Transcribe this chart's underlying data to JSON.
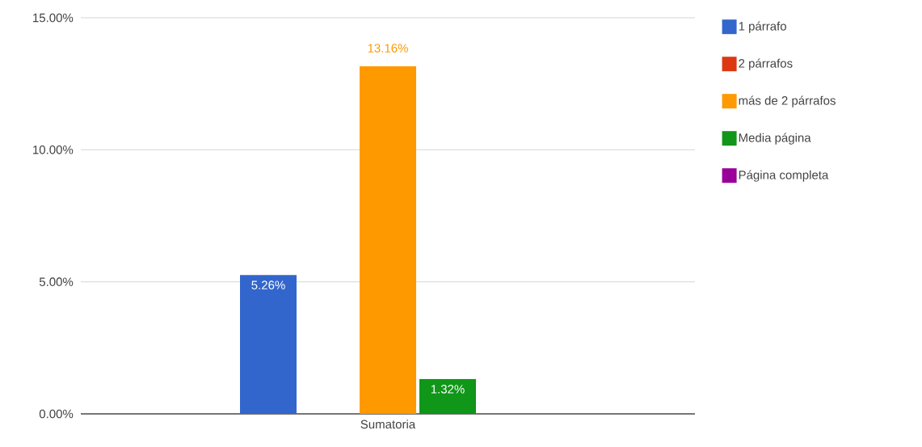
{
  "chart_data": {
    "type": "bar",
    "categories": [
      "Sumatoria"
    ],
    "series": [
      {
        "name": "1 párrafo",
        "color": "#3366cc",
        "values": [
          5.26
        ],
        "value_labels": [
          "5.26%"
        ]
      },
      {
        "name": "2 párrafos",
        "color": "#dc3912",
        "values": [
          0
        ],
        "value_labels": [
          null
        ]
      },
      {
        "name": "más de 2 párrafos",
        "color": "#ff9900",
        "values": [
          13.16
        ],
        "value_labels": [
          "13.16%"
        ]
      },
      {
        "name": "Media página",
        "color": "#109618",
        "values": [
          1.32
        ],
        "value_labels": [
          "1.32%"
        ]
      },
      {
        "name": "Página completa",
        "color": "#990099",
        "values": [
          0
        ],
        "value_labels": [
          null
        ]
      }
    ],
    "ylim": [
      0,
      15
    ],
    "yticks": [
      {
        "value": 0,
        "label": "0.00%"
      },
      {
        "value": 5,
        "label": "5.00%"
      },
      {
        "value": 10,
        "label": "10.00%"
      },
      {
        "value": 15,
        "label": "15.00%"
      }
    ],
    "grid": "y",
    "legend": "top right"
  }
}
